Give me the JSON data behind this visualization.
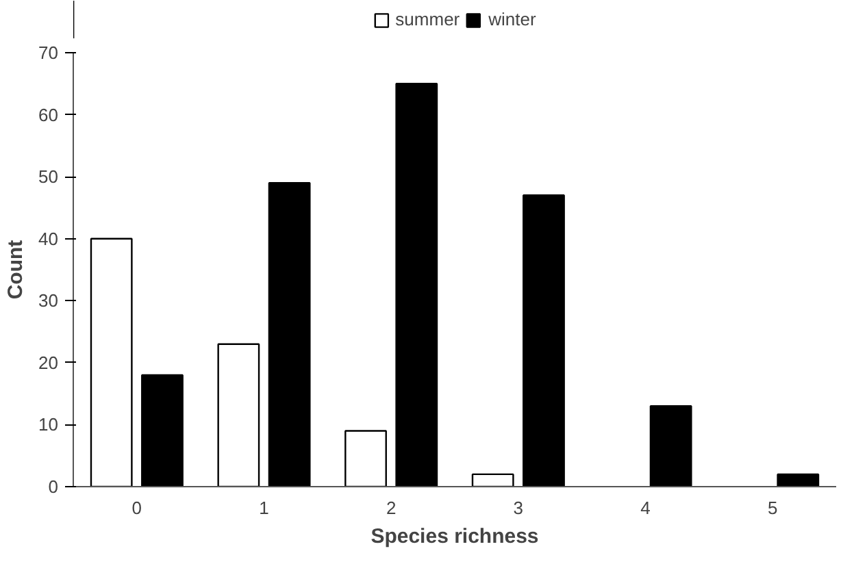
{
  "chart_data": {
    "type": "bar",
    "xlabel": "Species richness",
    "ylabel": "Count",
    "categories": [
      "0",
      "1",
      "2",
      "3",
      "4",
      "5"
    ],
    "series": [
      {
        "name": "summer",
        "color": "#ffffff",
        "values": [
          40,
          23,
          9,
          2,
          null,
          null
        ]
      },
      {
        "name": "winter",
        "color": "#000000",
        "values": [
          18,
          49,
          65,
          47,
          13,
          2
        ]
      }
    ],
    "ylim": [
      0,
      70
    ],
    "yticks": [
      0,
      10,
      20,
      30,
      40,
      50,
      60,
      70
    ],
    "grid": false,
    "legend": "top"
  }
}
